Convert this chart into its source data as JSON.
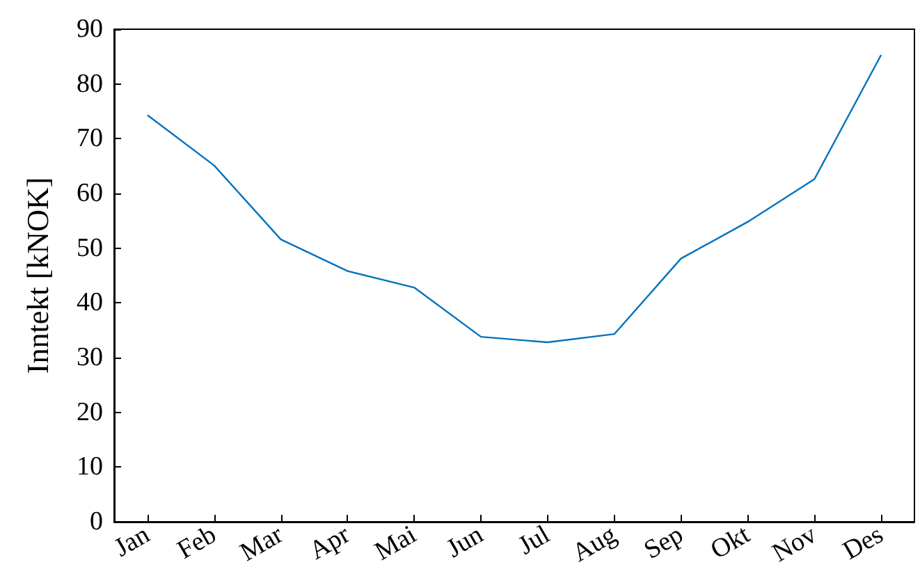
{
  "chart_data": {
    "type": "line",
    "ylabel": "Inntekt [kNOK]",
    "categories": [
      "Jan",
      "Feb",
      "Mar",
      "Apr",
      "Mai",
      "Jun",
      "Jul",
      "Aug",
      "Sep",
      "Okt",
      "Nov",
      "Des"
    ],
    "series": [
      {
        "color": "#0072bd",
        "values": [
          74.3,
          65.1,
          51.6,
          45.8,
          42.8,
          33.8,
          32.8,
          34.3,
          48.1,
          54.8,
          62.6,
          85.3
        ]
      }
    ],
    "ylim": [
      0,
      90
    ],
    "yticks": [
      0,
      10,
      20,
      30,
      40,
      50,
      60,
      70,
      80,
      90
    ],
    "marker": "none",
    "line_style": "solid"
  }
}
